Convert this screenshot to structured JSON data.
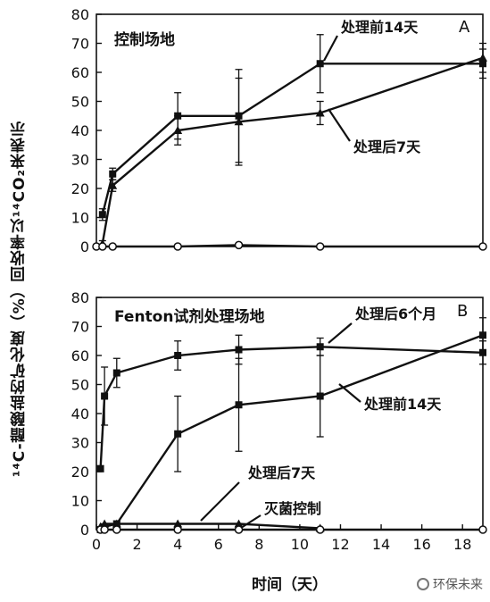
{
  "figure": {
    "y_label": "¹⁴C-醋酸盐的矿化度（%）回收率以¹⁴CO₂来表示",
    "x_label": "时间（天）",
    "watermark": "环保未来"
  },
  "chart_data": [
    {
      "type": "line",
      "panel_letter": "A",
      "title": "控制场地",
      "xlabel": "时间（天）",
      "xlim": [
        0,
        19
      ],
      "ylim": [
        0,
        80
      ],
      "x_ticks": [],
      "y_ticks": [
        0,
        10,
        20,
        30,
        40,
        50,
        60,
        70,
        80
      ],
      "grid": false,
      "series": [
        {
          "name": "处理前14天",
          "marker": "square",
          "x": [
            0.3,
            0.8,
            4,
            7,
            11,
            19
          ],
          "y": [
            11,
            25,
            45,
            45,
            63,
            63
          ],
          "err": [
            2,
            2,
            8,
            16,
            10,
            5
          ]
        },
        {
          "name": "处理后7天",
          "marker": "triangle",
          "x": [
            0.3,
            0.8,
            4,
            7,
            11,
            19
          ],
          "y": [
            1,
            21,
            40,
            43,
            46,
            65
          ],
          "err": [
            1,
            2,
            5,
            15,
            4,
            5
          ]
        },
        {
          "name": "",
          "marker": "circle",
          "x": [
            0,
            0.3,
            0.8,
            4,
            7,
            11,
            19
          ],
          "y": [
            0,
            0,
            0,
            0,
            0.5,
            0,
            0
          ],
          "err": [
            0,
            0,
            0,
            0,
            0,
            0,
            0
          ]
        }
      ]
    },
    {
      "type": "line",
      "panel_letter": "B",
      "title": "Fenton试剂处理场地",
      "xlabel": "时间（天）",
      "xlim": [
        0,
        19
      ],
      "ylim": [
        0,
        80
      ],
      "x_ticks": [
        0,
        2,
        4,
        6,
        8,
        10,
        12,
        14,
        16,
        18
      ],
      "y_ticks": [
        0,
        10,
        20,
        30,
        40,
        50,
        60,
        70,
        80
      ],
      "grid": false,
      "series": [
        {
          "name": "处理后6个月",
          "marker": "square",
          "x": [
            0.2,
            0.4,
            1,
            4,
            7,
            11,
            19
          ],
          "y": [
            21,
            46,
            54,
            60,
            62,
            63,
            61
          ],
          "err": [
            1,
            10,
            5,
            5,
            5,
            3,
            4
          ]
        },
        {
          "name": "处理前14天",
          "marker": "square",
          "x": [
            0.2,
            0.4,
            1,
            4,
            7,
            11,
            19
          ],
          "y": [
            0,
            1,
            2,
            33,
            43,
            46,
            67
          ],
          "err": [
            0,
            0.5,
            1,
            13,
            16,
            14,
            6
          ]
        },
        {
          "name": "处理后7天",
          "marker": "triangle",
          "x": [
            0.2,
            0.4,
            1,
            4,
            7,
            11
          ],
          "y": [
            1,
            2,
            2,
            2,
            2,
            0.5
          ],
          "err": [
            0,
            0,
            0,
            0,
            0,
            0
          ]
        },
        {
          "name": "灭菌控制",
          "marker": "circle",
          "x": [
            0.2,
            0.4,
            1,
            4,
            7,
            11,
            19
          ],
          "y": [
            0,
            0,
            0,
            0,
            0,
            0,
            0
          ],
          "err": [
            0,
            0,
            0,
            0,
            0,
            0,
            0
          ]
        }
      ]
    }
  ]
}
